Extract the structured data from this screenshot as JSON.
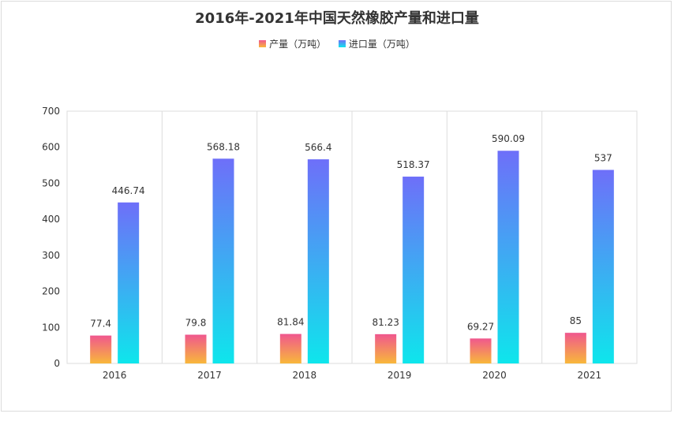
{
  "chart_data": {
    "type": "bar",
    "title": "2016年-2021年中国天然橡胶产量和进口量",
    "categories": [
      "2016",
      "2017",
      "2018",
      "2019",
      "2020",
      "2021"
    ],
    "series": [
      {
        "name": "产量（万吨）",
        "values": [
          77.4,
          79.8,
          81.84,
          81.23,
          69.27,
          85
        ],
        "labels": [
          "77.4",
          "79.8",
          "81.84",
          "81.23",
          "69.27",
          "85"
        ],
        "colors": [
          "#f0578e",
          "#f8b83a"
        ]
      },
      {
        "name": "进口量（万吨）",
        "values": [
          446.74,
          568.18,
          566.4,
          518.37,
          590.09,
          537
        ],
        "labels": [
          "446.74",
          "568.18",
          "566.4",
          "518.37",
          "590.09",
          "537"
        ],
        "colors": [
          "#6e6ff9",
          "#0ee6ec"
        ]
      }
    ],
    "ylim": [
      0,
      700
    ],
    "yticks": [
      "0",
      "100",
      "200",
      "300",
      "400",
      "500",
      "600",
      "700"
    ],
    "xlabel": "",
    "ylabel": "",
    "legend_position": "top-center",
    "grid": "vertical category separators"
  }
}
